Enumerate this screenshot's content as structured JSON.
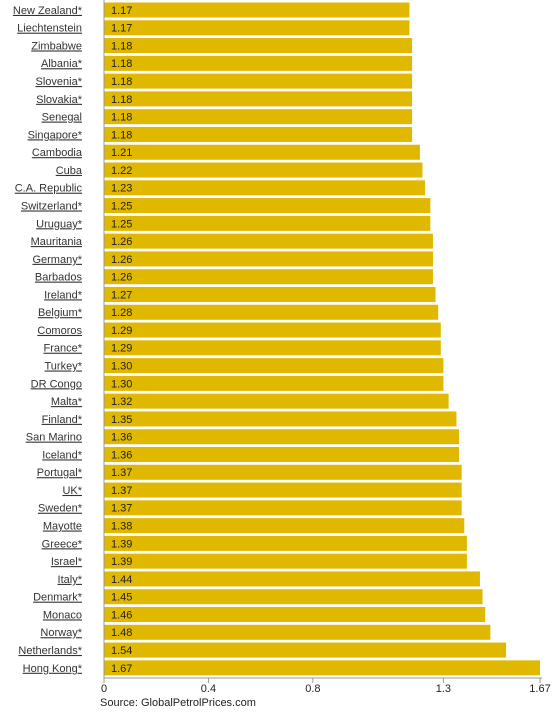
{
  "chart_data": {
    "type": "bar",
    "orientation": "horizontal",
    "categories": [
      "New Zealand*",
      "Liechtenstein",
      "Zimbabwe",
      "Albania*",
      "Slovenia*",
      "Slovakia*",
      "Senegal",
      "Singapore*",
      "Cambodia",
      "Cuba",
      "C.A. Republic",
      "Switzerland*",
      "Uruguay*",
      "Mauritania",
      "Germany*",
      "Barbados",
      "Ireland*",
      "Belgium*",
      "Comoros",
      "France*",
      "Turkey*",
      "DR Congo",
      "Malta*",
      "Finland*",
      "San Marino",
      "Iceland*",
      "Portugal*",
      "UK*",
      "Sweden*",
      "Mayotte",
      "Greece*",
      "Israel*",
      "Italy*",
      "Denmark*",
      "Monaco",
      "Norway*",
      "Netherlands*",
      "Hong Kong*"
    ],
    "values": [
      1.17,
      1.17,
      1.18,
      1.18,
      1.18,
      1.18,
      1.18,
      1.18,
      1.21,
      1.22,
      1.23,
      1.25,
      1.25,
      1.26,
      1.26,
      1.26,
      1.27,
      1.28,
      1.29,
      1.29,
      1.3,
      1.3,
      1.32,
      1.35,
      1.36,
      1.36,
      1.37,
      1.37,
      1.37,
      1.38,
      1.39,
      1.39,
      1.44,
      1.45,
      1.46,
      1.48,
      1.54,
      1.67
    ],
    "value_labels": [
      "1.17",
      "1.17",
      "1.18",
      "1.18",
      "1.18",
      "1.18",
      "1.18",
      "1.18",
      "1.21",
      "1.22",
      "1.23",
      "1.25",
      "1.25",
      "1.26",
      "1.26",
      "1.26",
      "1.27",
      "1.28",
      "1.29",
      "1.29",
      "1.30",
      "1.30",
      "1.32",
      "1.35",
      "1.36",
      "1.36",
      "1.37",
      "1.37",
      "1.37",
      "1.38",
      "1.39",
      "1.39",
      "1.44",
      "1.45",
      "1.46",
      "1.48",
      "1.54",
      "1.67"
    ],
    "color": "#e0b800",
    "xlim": [
      0,
      1.67
    ],
    "xticks": [
      0,
      0.4,
      0.8,
      1.3,
      1.67
    ],
    "source": "Source: GlobalPetrolPrices.com"
  }
}
